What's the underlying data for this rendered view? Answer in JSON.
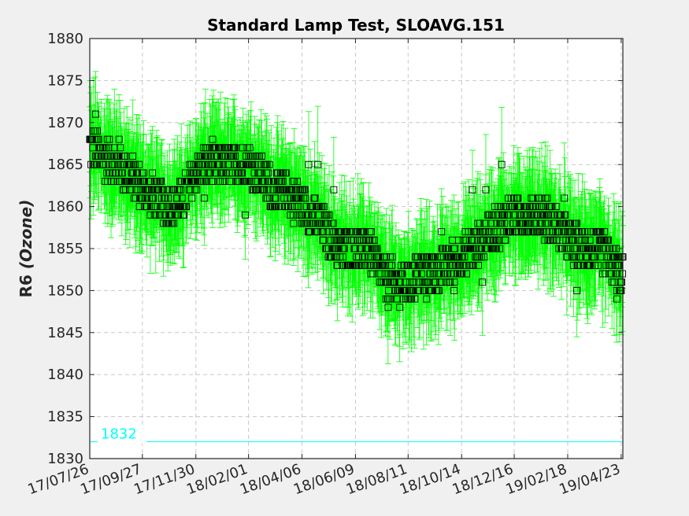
{
  "chart_data": {
    "type": "scatter",
    "title": "Standard Lamp Test, SLOAVG.151",
    "ylabel_main": "R6 ",
    "ylabel_italic": "(Ozone)",
    "ylim": [
      1830,
      1880
    ],
    "yticks": [
      1830,
      1835,
      1840,
      1845,
      1850,
      1855,
      1860,
      1865,
      1870,
      1875,
      1880
    ],
    "xlim": [
      "2017-07-26",
      "2019-04-25"
    ],
    "xticks": [
      "2017-07-26",
      "2017-09-27",
      "2017-11-30",
      "2018-02-01",
      "2018-04-06",
      "2018-06-09",
      "2018-08-11",
      "2018-10-14",
      "2018-12-16",
      "2019-02-18",
      "2019-04-23"
    ],
    "xtick_labels": [
      "17/07/26",
      "17/09/27",
      "17/11/30",
      "18/02/01",
      "18/04/06",
      "18/06/09",
      "18/08/11",
      "18/10/14",
      "18/12/16",
      "19/02/18",
      "19/04/23"
    ],
    "reference_line": {
      "value": 1832,
      "label": "1832",
      "color": "#00ffff"
    },
    "grid": true,
    "series_style": {
      "marker": "square",
      "marker_color": "#000000",
      "errorbar_color": "#00ff00"
    },
    "trend": [
      [
        "2017-07-26",
        1867
      ],
      [
        "2017-08-10",
        1866
      ],
      [
        "2017-08-25",
        1865
      ],
      [
        "2017-09-10",
        1864
      ],
      [
        "2017-09-27",
        1862
      ],
      [
        "2017-10-15",
        1861
      ],
      [
        "2017-11-01",
        1860
      ],
      [
        "2017-11-15",
        1861
      ],
      [
        "2017-11-30",
        1864
      ],
      [
        "2017-12-15",
        1865
      ],
      [
        "2018-01-01",
        1865
      ],
      [
        "2018-01-15",
        1865
      ],
      [
        "2018-02-01",
        1865
      ],
      [
        "2018-02-15",
        1864
      ],
      [
        "2018-03-01",
        1862
      ],
      [
        "2018-03-15",
        1862
      ],
      [
        "2018-04-06",
        1860
      ],
      [
        "2018-04-20",
        1859
      ],
      [
        "2018-05-05",
        1857
      ],
      [
        "2018-05-20",
        1855
      ],
      [
        "2018-06-09",
        1855
      ],
      [
        "2018-06-25",
        1855
      ],
      [
        "2018-07-10",
        1852
      ],
      [
        "2018-07-25",
        1851
      ],
      [
        "2018-08-11",
        1851
      ],
      [
        "2018-08-25",
        1852
      ],
      [
        "2018-09-10",
        1852
      ],
      [
        "2018-09-25",
        1853
      ],
      [
        "2018-10-14",
        1854
      ],
      [
        "2018-10-30",
        1855
      ],
      [
        "2018-11-15",
        1857
      ],
      [
        "2018-12-01",
        1858
      ],
      [
        "2018-12-16",
        1859
      ],
      [
        "2019-01-01",
        1859
      ],
      [
        "2019-01-15",
        1859
      ],
      [
        "2019-02-01",
        1858
      ],
      [
        "2019-02-18",
        1856
      ],
      [
        "2019-03-05",
        1855
      ],
      [
        "2019-03-20",
        1855
      ],
      [
        "2019-04-05",
        1854
      ],
      [
        "2019-04-23",
        1852
      ]
    ],
    "outliers": [
      [
        "2017-08-02",
        1871
      ],
      [
        "2017-08-30",
        1868
      ],
      [
        "2017-09-12",
        1862
      ],
      [
        "2017-12-10",
        1861
      ],
      [
        "2017-12-20",
        1868
      ],
      [
        "2018-01-28",
        1859
      ],
      [
        "2018-03-10",
        1860
      ],
      [
        "2018-04-14",
        1865
      ],
      [
        "2018-04-25",
        1865
      ],
      [
        "2018-05-14",
        1862
      ],
      [
        "2018-05-18",
        1853
      ],
      [
        "2018-07-18",
        1848
      ],
      [
        "2018-08-01",
        1848
      ],
      [
        "2018-09-02",
        1849
      ],
      [
        "2018-09-20",
        1857
      ],
      [
        "2018-10-05",
        1850
      ],
      [
        "2018-10-27",
        1862
      ],
      [
        "2018-11-08",
        1851
      ],
      [
        "2018-11-12",
        1862
      ],
      [
        "2018-12-01",
        1865
      ],
      [
        "2019-02-14",
        1861
      ],
      [
        "2019-03-01",
        1850
      ],
      [
        "2019-04-18",
        1849
      ],
      [
        "2019-04-21",
        1850
      ]
    ]
  }
}
